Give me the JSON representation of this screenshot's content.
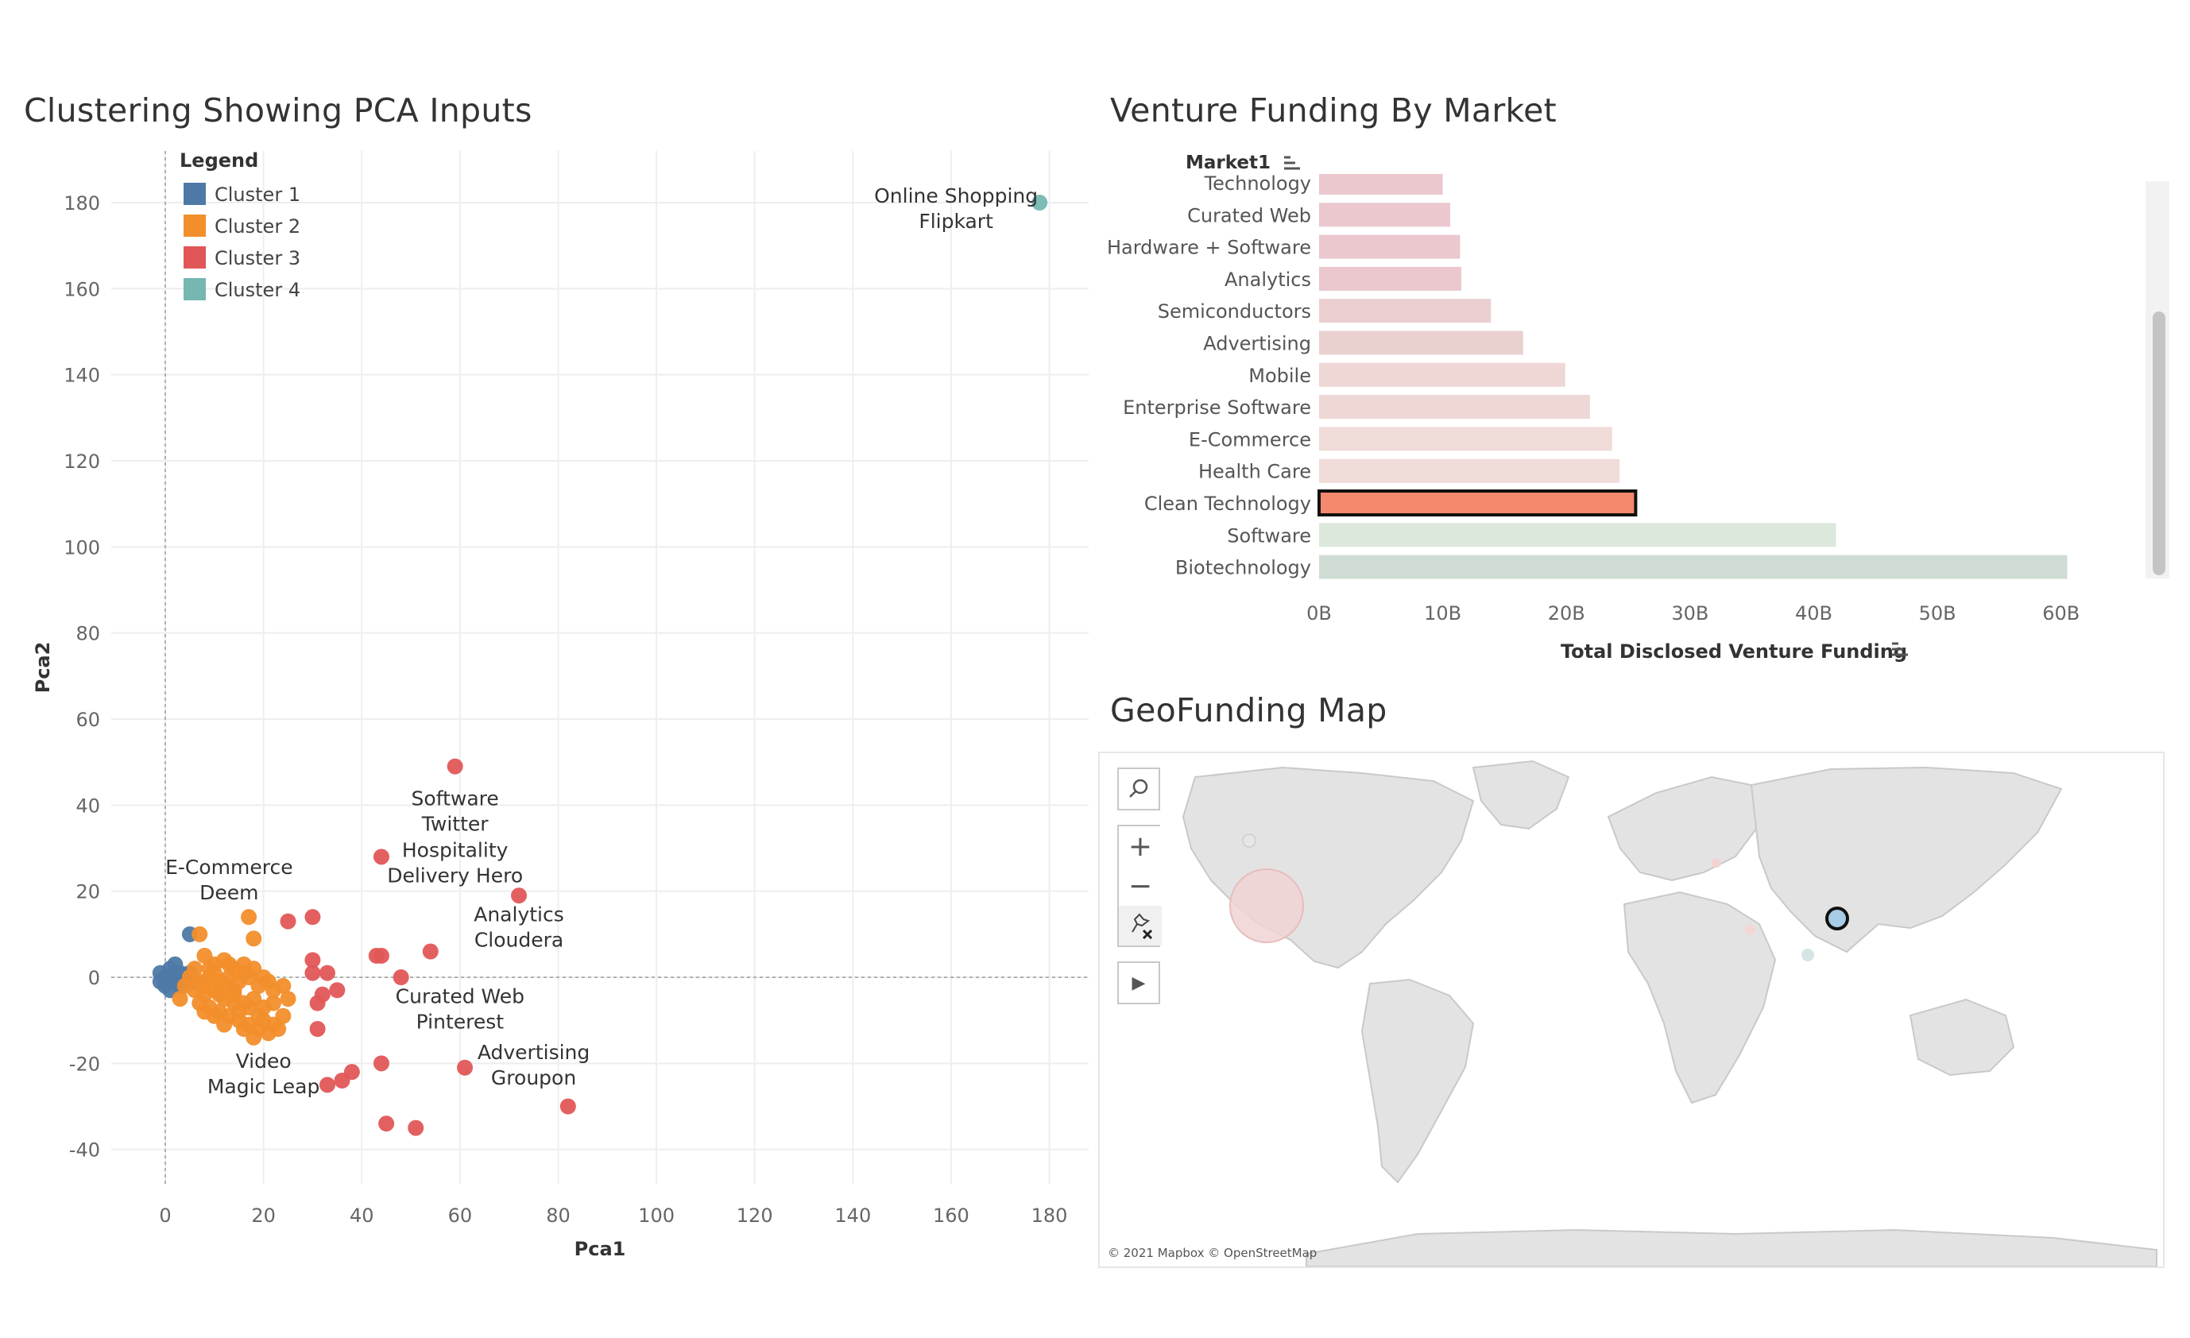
{
  "titles": {
    "pca": "Clustering Showing PCA Inputs",
    "funding": "Venture Funding By Market",
    "map": "GeoFunding Map"
  },
  "chart_data": [
    {
      "type": "scatter",
      "title": "Clustering Showing PCA Inputs",
      "xlabel": "Pca1",
      "ylabel": "Pca2",
      "xlim": [
        -11,
        188
      ],
      "ylim": [
        -48,
        192
      ],
      "xticks": [
        0,
        20,
        40,
        60,
        80,
        100,
        120,
        140,
        160,
        180
      ],
      "yticks": [
        -40,
        -20,
        0,
        20,
        40,
        60,
        80,
        100,
        120,
        140,
        160,
        180
      ],
      "grid": true,
      "legend": {
        "title": "Legend",
        "placement": "top-left"
      },
      "series": [
        {
          "name": "Cluster 1",
          "color": "#4e79a7",
          "points": [
            [
              -1,
              1
            ],
            [
              0,
              0
            ],
            [
              1,
              2
            ],
            [
              2,
              -1
            ],
            [
              1,
              -3
            ],
            [
              3,
              1
            ],
            [
              4,
              0
            ],
            [
              0,
              -2
            ],
            [
              2,
              3
            ],
            [
              5,
              1
            ],
            [
              3,
              -2
            ],
            [
              6,
              -1
            ],
            [
              -1,
              -1
            ],
            [
              1,
              0
            ],
            [
              5,
              10
            ]
          ]
        },
        {
          "name": "Cluster 2",
          "color": "#f28e2b",
          "points": [
            [
              7,
              10
            ],
            [
              17,
              14
            ],
            [
              18,
              9
            ],
            [
              8,
              5
            ],
            [
              10,
              3
            ],
            [
              12,
              4
            ],
            [
              14,
              2
            ],
            [
              16,
              3
            ],
            [
              5,
              0
            ],
            [
              7,
              -1
            ],
            [
              9,
              0
            ],
            [
              11,
              -1
            ],
            [
              13,
              0
            ],
            [
              15,
              -1
            ],
            [
              17,
              0
            ],
            [
              19,
              -2
            ],
            [
              21,
              -1
            ],
            [
              6,
              -3
            ],
            [
              8,
              -4
            ],
            [
              10,
              -3
            ],
            [
              12,
              -5
            ],
            [
              14,
              -4
            ],
            [
              16,
              -6
            ],
            [
              18,
              -5
            ],
            [
              20,
              -7
            ],
            [
              22,
              -6
            ],
            [
              9,
              -7
            ],
            [
              11,
              -8
            ],
            [
              13,
              -9
            ],
            [
              15,
              -10
            ],
            [
              17,
              -11
            ],
            [
              19,
              -12
            ],
            [
              21,
              -13
            ],
            [
              23,
              -12
            ],
            [
              3,
              -5
            ],
            [
              4,
              -2
            ],
            [
              6,
              2
            ],
            [
              8,
              -2
            ],
            [
              10,
              1
            ],
            [
              12,
              -2
            ],
            [
              14,
              -3
            ],
            [
              16,
              1
            ],
            [
              18,
              2
            ],
            [
              20,
              0
            ],
            [
              22,
              -3
            ],
            [
              24,
              -2
            ],
            [
              25,
              -5
            ],
            [
              15,
              -8
            ],
            [
              20,
              -10
            ],
            [
              12,
              -11
            ],
            [
              18,
              -14
            ],
            [
              14,
              -6
            ],
            [
              10,
              -9
            ],
            [
              7,
              -6
            ],
            [
              24,
              -9
            ],
            [
              16,
              -12
            ],
            [
              11,
              -4
            ],
            [
              13,
              3
            ],
            [
              9,
              2
            ],
            [
              19,
              -9
            ],
            [
              22,
              -11
            ],
            [
              17,
              -7
            ],
            [
              8,
              -8
            ]
          ]
        },
        {
          "name": "Cluster 3",
          "color": "#e15759",
          "points": [
            [
              59,
              49
            ],
            [
              44,
              28
            ],
            [
              72,
              19
            ],
            [
              25,
              13
            ],
            [
              30,
              14
            ],
            [
              54,
              6
            ],
            [
              43,
              5
            ],
            [
              44,
              5
            ],
            [
              30,
              4
            ],
            [
              33,
              1
            ],
            [
              30,
              1
            ],
            [
              48,
              0
            ],
            [
              35,
              -3
            ],
            [
              32,
              -4
            ],
            [
              31,
              -6
            ],
            [
              31,
              -12
            ],
            [
              44,
              -20
            ],
            [
              38,
              -22
            ],
            [
              36,
              -24
            ],
            [
              33,
              -25
            ],
            [
              61,
              -21
            ],
            [
              45,
              -34
            ],
            [
              51,
              -35
            ],
            [
              82,
              -30
            ]
          ]
        },
        {
          "name": "Cluster 4",
          "color": "#76b7b2",
          "points": [
            [
              178,
              180
            ]
          ]
        }
      ],
      "annotations": [
        {
          "lines": [
            "Online Shopping",
            "Flipkart"
          ],
          "x": 161,
          "y": 180
        },
        {
          "lines": [
            "Software",
            "Twitter"
          ],
          "x": 59,
          "y": 40
        },
        {
          "lines": [
            "Hospitality",
            "Delivery Hero"
          ],
          "x": 59,
          "y": 28
        },
        {
          "lines": [
            "E-Commerce",
            "Deem"
          ],
          "x": 13,
          "y": 24
        },
        {
          "lines": [
            "Analytics",
            "Cloudera"
          ],
          "x": 72,
          "y": 13
        },
        {
          "lines": [
            "Curated Web",
            "Pinterest"
          ],
          "x": 60,
          "y": -6
        },
        {
          "lines": [
            "Advertising",
            "Groupon"
          ],
          "x": 75,
          "y": -19
        },
        {
          "lines": [
            "Video",
            "Magic Leap"
          ],
          "x": 20,
          "y": -21
        }
      ]
    },
    {
      "type": "bar",
      "orientation": "horizontal",
      "title": "Venture Funding By Market",
      "category_header": "Market1",
      "xlabel": "Total Disclosed Venture Funding",
      "xlim": [
        0,
        64
      ],
      "xticks": [
        "0B",
        "10B",
        "20B",
        "30B",
        "40B",
        "50B",
        "60B"
      ],
      "categories": [
        "Technology",
        "Curated Web",
        "Hardware + Software",
        "Analytics",
        "Semiconductors",
        "Advertising",
        "Mobile",
        "Enterprise Software",
        "E-Commerce",
        "Health Care",
        "Clean Technology",
        "Software",
        "Biotechnology"
      ],
      "values": [
        10.0,
        10.6,
        11.4,
        11.5,
        13.9,
        16.5,
        19.9,
        21.9,
        23.7,
        24.3,
        25.6,
        41.8,
        60.5
      ],
      "colors": [
        "#eac8cd",
        "#eac8cd",
        "#eac8cd",
        "#eac8cd",
        "#ebcfd0",
        "#ebd0d0",
        "#eed7d4",
        "#eed7d4",
        "#efdcd8",
        "#efdcd8",
        "#f4896f",
        "#dde8dc",
        "#cfdcd3"
      ],
      "selected": "Clean Technology"
    }
  ],
  "map": {
    "attribution": "© 2021 Mapbox © OpenStreetMap",
    "tools": [
      "search-icon",
      "zoom-in-icon",
      "zoom-out-icon",
      "pin-reset-icon",
      "play-icon"
    ],
    "tool_glyphs": {
      "zoom_in": "+",
      "zoom_out": "−",
      "play": "▶"
    }
  }
}
